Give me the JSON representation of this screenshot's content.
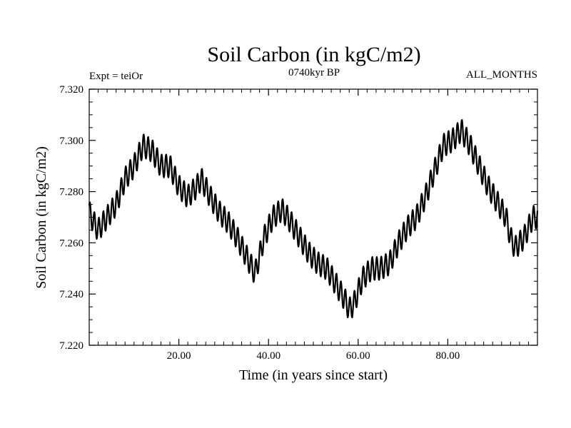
{
  "chart_data": {
    "type": "line",
    "title": "Soil Carbon (in kgC/m2)",
    "subtitle": "0740kyr BP",
    "experiment_label": "Expt = teiOr",
    "months_label": "ALL_MONTHS",
    "xlabel": "Time (in years since start)",
    "ylabel": "Soil Carbon (in kgC/m2)",
    "xlim": [
      0,
      100
    ],
    "ylim": [
      7.22,
      7.32
    ],
    "x_ticks": [
      20,
      40,
      60,
      80
    ],
    "x_tick_labels": [
      "20.00",
      "40.00",
      "60.00",
      "80.00"
    ],
    "y_ticks": [
      7.22,
      7.24,
      7.26,
      7.28,
      7.3,
      7.32
    ],
    "y_tick_labels": [
      "7.220",
      "7.240",
      "7.260",
      "7.280",
      "7.300",
      "7.320"
    ],
    "grid": false,
    "series": [
      {
        "name": "Soil Carbon",
        "seasonal_amplitude": 0.0045,
        "samples_per_year": 12,
        "annual_mean": {
          "x": [
            0,
            1,
            2,
            4,
            6,
            8,
            10,
            12,
            14,
            16,
            18,
            20,
            22,
            24,
            25,
            27,
            29,
            31,
            33,
            35,
            37,
            39,
            41,
            43,
            45,
            47,
            49,
            51,
            53,
            55,
            57,
            58,
            59,
            61,
            63,
            65,
            67,
            69,
            71,
            73,
            75,
            77,
            79,
            81,
            83,
            85,
            87,
            89,
            91,
            93,
            94,
            95,
            97,
            99,
            100
          ],
          "y": [
            7.272,
            7.268,
            7.265,
            7.27,
            7.275,
            7.285,
            7.29,
            7.298,
            7.296,
            7.29,
            7.29,
            7.282,
            7.278,
            7.282,
            7.285,
            7.278,
            7.272,
            7.268,
            7.262,
            7.255,
            7.248,
            7.262,
            7.27,
            7.273,
            7.268,
            7.262,
            7.256,
            7.252,
            7.25,
            7.244,
            7.238,
            7.234,
            7.236,
            7.246,
            7.25,
            7.25,
            7.252,
            7.26,
            7.266,
            7.27,
            7.278,
            7.288,
            7.298,
            7.3,
            7.304,
            7.298,
            7.29,
            7.282,
            7.276,
            7.27,
            7.262,
            7.258,
            7.262,
            7.27,
            7.27
          ]
        }
      }
    ]
  }
}
